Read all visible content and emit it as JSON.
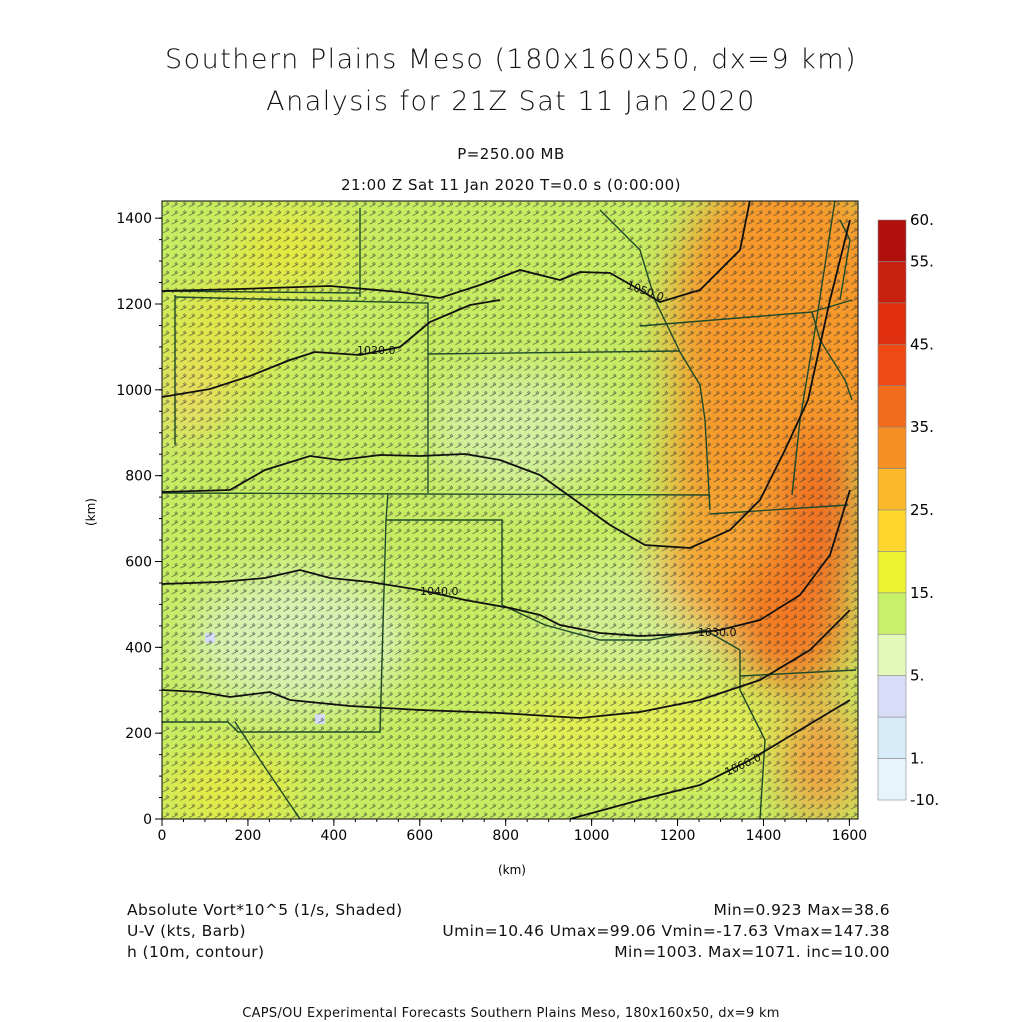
{
  "header": {
    "title_line1": "Southern Plains Meso (180x160x50, dx=9 km)",
    "title_line2": "Analysis for 21Z Sat 11 Jan 2020",
    "level": "P=250.00 MB",
    "valid_time": "21:00 Z Sat 11 Jan 2020    T=0.0 s (0:00:00)"
  },
  "axes": {
    "x_ticks": [
      "0",
      "200",
      "400",
      "600",
      "800",
      "1000",
      "1200",
      "1400",
      "1600"
    ],
    "x_tick_values": [
      0,
      200,
      400,
      600,
      800,
      1000,
      1200,
      1400,
      1600
    ],
    "y_ticks": [
      "0",
      "200",
      "400",
      "600",
      "800",
      "1000",
      "1200",
      "1400"
    ],
    "y_tick_values": [
      0,
      200,
      400,
      600,
      800,
      1000,
      1200,
      1400
    ],
    "x_label": "(km)",
    "y_label": "(km)",
    "x_range": [
      0,
      1620
    ],
    "y_range": [
      0,
      1440
    ]
  },
  "colorbar": {
    "labels": [
      "60.",
      "55.",
      "45.",
      "35.",
      "25.",
      "15.",
      "5.",
      "1.",
      "-10."
    ],
    "colors_top_to_bottom": [
      "#b0100c",
      "#c8200e",
      "#e03010",
      "#f04a14",
      "#f26a1c",
      "#f79024",
      "#fbb82a",
      "#fdd72e",
      "#eef232",
      "#c8f06a",
      "#e4f8b8",
      "#d8dcf8",
      "#d6ecf8",
      "#e6f4fc"
    ]
  },
  "contours": [
    {
      "label": "1020.0"
    },
    {
      "label": "1040.0"
    },
    {
      "label": "1030.0"
    },
    {
      "label": "1060.0"
    },
    {
      "label": "1050.0"
    }
  ],
  "info": {
    "field1_name": "Absolute Vort*10^5 (1/s, Shaded)",
    "field1_stats": "Min=0.923 Max=38.6",
    "field2_name": "U-V (kts, Barb)",
    "field2_stats": "Umin=10.46 Umax=99.06 Vmin=-17.63 Vmax=147.38",
    "field3_name": "h (10m, contour)",
    "field3_stats": "Min=1003. Max=1071. inc=10.00"
  },
  "footer": "CAPS/OU Experimental Forecasts  Southern Plains Meso, 180x160x50, dx=9 km",
  "colors": {
    "state_lines": "#1f4a2a",
    "contour": "#111111",
    "barb": "#333333"
  }
}
